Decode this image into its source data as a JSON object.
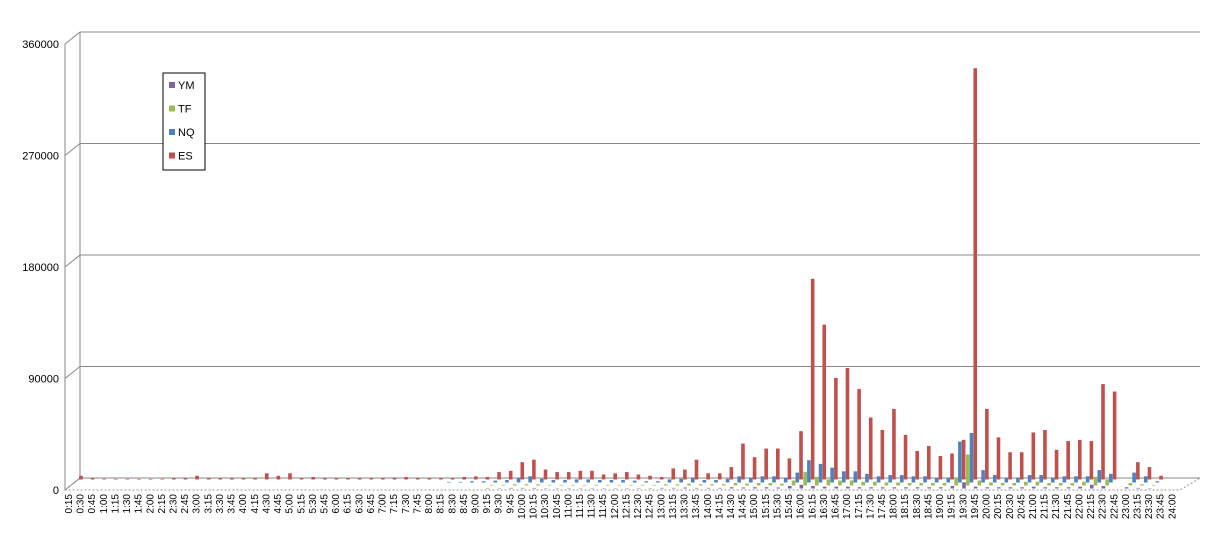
{
  "chart_data": {
    "type": "bar3d",
    "categories": [
      "0:15",
      "0:30",
      "0:45",
      "1:00",
      "1:15",
      "1:30",
      "1:45",
      "2:00",
      "2:15",
      "2:30",
      "2:45",
      "3:00",
      "3:15",
      "3:30",
      "3:45",
      "4:00",
      "4:15",
      "4:30",
      "4:45",
      "5:00",
      "5:15",
      "5:30",
      "5:45",
      "6:00",
      "6:15",
      "6:30",
      "6:45",
      "7:00",
      "7:15",
      "7:30",
      "7:45",
      "8:00",
      "8:15",
      "8:30",
      "8:45",
      "9:00",
      "9:15",
      "9:30",
      "9:45",
      "10:00",
      "10:15",
      "10:30",
      "10:45",
      "11:00",
      "11:15",
      "11:30",
      "11:45",
      "12:00",
      "12:15",
      "12:30",
      "12:45",
      "13:00",
      "13:15",
      "13:30",
      "13:45",
      "14:00",
      "14:15",
      "14:30",
      "14:45",
      "15:00",
      "15:15",
      "15:30",
      "15:45",
      "16:00",
      "16:15",
      "16:30",
      "16:45",
      "17:00",
      "17:15",
      "17:30",
      "17:45",
      "18:00",
      "18:15",
      "18:30",
      "18:45",
      "19:00",
      "19:15",
      "19:30",
      "19:45",
      "20:00",
      "20:15",
      "20:30",
      "20:45",
      "21:00",
      "21:15",
      "21:30",
      "21:45",
      "22:00",
      "22:15",
      "22:30",
      "22:45",
      "23:00",
      "23:15",
      "23:30",
      "23:45",
      "24:00"
    ],
    "series": [
      {
        "name": "YM",
        "color": "#8064a2",
        "values": [
          0,
          0,
          0,
          0,
          0,
          0,
          0,
          0,
          0,
          0,
          0,
          0,
          0,
          0,
          0,
          0,
          0,
          0,
          0,
          0,
          0,
          0,
          0,
          0,
          0,
          0,
          0,
          0,
          0,
          0,
          0,
          0,
          0,
          0,
          0,
          0,
          300,
          300,
          500,
          500,
          500,
          300,
          300,
          300,
          300,
          300,
          300,
          300,
          300,
          300,
          300,
          500,
          500,
          800,
          500,
          500,
          500,
          1000,
          800,
          1000,
          1000,
          800,
          2000,
          3000,
          2000,
          1500,
          1500,
          1500,
          1000,
          1000,
          1000,
          1000,
          1000,
          1000,
          1000,
          1000,
          2000,
          5000,
          1500,
          1000,
          1000,
          1000,
          1000,
          1500,
          1000,
          1000,
          1000,
          1500,
          3000,
          2000,
          0,
          1000,
          500,
          300,
          0,
          0
        ]
      },
      {
        "name": "TF",
        "color": "#9bbb59",
        "values": [
          0,
          0,
          0,
          0,
          0,
          0,
          0,
          0,
          0,
          0,
          0,
          0,
          0,
          0,
          0,
          0,
          0,
          0,
          0,
          0,
          0,
          0,
          0,
          0,
          0,
          0,
          0,
          0,
          0,
          0,
          0,
          0,
          0,
          0,
          0,
          0,
          500,
          500,
          1000,
          1000,
          1000,
          500,
          500,
          500,
          500,
          500,
          500,
          500,
          500,
          500,
          500,
          1000,
          1000,
          1500,
          1000,
          1000,
          1000,
          2000,
          1500,
          2000,
          2000,
          1500,
          4000,
          11000,
          7000,
          5000,
          4000,
          4000,
          3000,
          3000,
          2500,
          2500,
          2000,
          2000,
          2000,
          2000,
          6000,
          25000,
          4000,
          2500,
          2000,
          2000,
          3000,
          3000,
          2000,
          2000,
          2000,
          3000,
          7000,
          5000,
          0,
          2000,
          1000,
          500,
          0,
          0
        ]
      },
      {
        "name": "NQ",
        "color": "#4f81bd",
        "values": [
          0,
          0,
          0,
          0,
          0,
          0,
          0,
          0,
          0,
          0,
          0,
          0,
          0,
          0,
          0,
          0,
          0,
          0,
          0,
          0,
          0,
          0,
          0,
          0,
          0,
          0,
          0,
          0,
          0,
          0,
          0,
          0,
          500,
          500,
          1000,
          1000,
          1500,
          2000,
          4000,
          5000,
          3000,
          2000,
          2000,
          2500,
          2500,
          2000,
          2000,
          2000,
          1500,
          1000,
          1000,
          2500,
          3000,
          4000,
          2000,
          2000,
          3000,
          5000,
          4000,
          5000,
          5000,
          4000,
          8000,
          18000,
          15000,
          12000,
          9000,
          9000,
          7000,
          5000,
          6000,
          6000,
          5000,
          5000,
          4000,
          4000,
          33000,
          40000,
          10000,
          6000,
          4000,
          4000,
          6000,
          6000,
          4000,
          5000,
          5000,
          5000,
          10000,
          7000,
          0,
          8000,
          5000,
          1000,
          0,
          0
        ]
      },
      {
        "name": "ES",
        "color": "#c0504d",
        "values": [
          3000,
          1000,
          500,
          500,
          500,
          500,
          500,
          500,
          1000,
          1000,
          3000,
          1000,
          1000,
          1000,
          1000,
          1000,
          5000,
          3000,
          5000,
          1000,
          2000,
          1000,
          1000,
          1000,
          1000,
          1000,
          1000,
          1500,
          2000,
          1000,
          1000,
          1000,
          1000,
          2000,
          2500,
          2000,
          6000,
          7000,
          14000,
          16000,
          8000,
          6000,
          6000,
          7000,
          7000,
          4000,
          5000,
          6000,
          4000,
          3000,
          2000,
          9000,
          8000,
          16000,
          5000,
          5000,
          10000,
          29000,
          18000,
          25000,
          25000,
          17000,
          39000,
          162000,
          125000,
          82000,
          90000,
          73000,
          50000,
          40000,
          57000,
          36000,
          23000,
          27000,
          19000,
          21000,
          32000,
          332000,
          57000,
          34000,
          22000,
          22000,
          38000,
          40000,
          24000,
          31000,
          32000,
          31000,
          77000,
          71000,
          0,
          14000,
          10000,
          3000,
          0,
          0
        ]
      }
    ],
    "ylim": [
      0,
      360000
    ],
    "yticks": [
      0,
      90000,
      180000,
      270000,
      360000
    ],
    "grid": true,
    "legend": "top-left"
  }
}
